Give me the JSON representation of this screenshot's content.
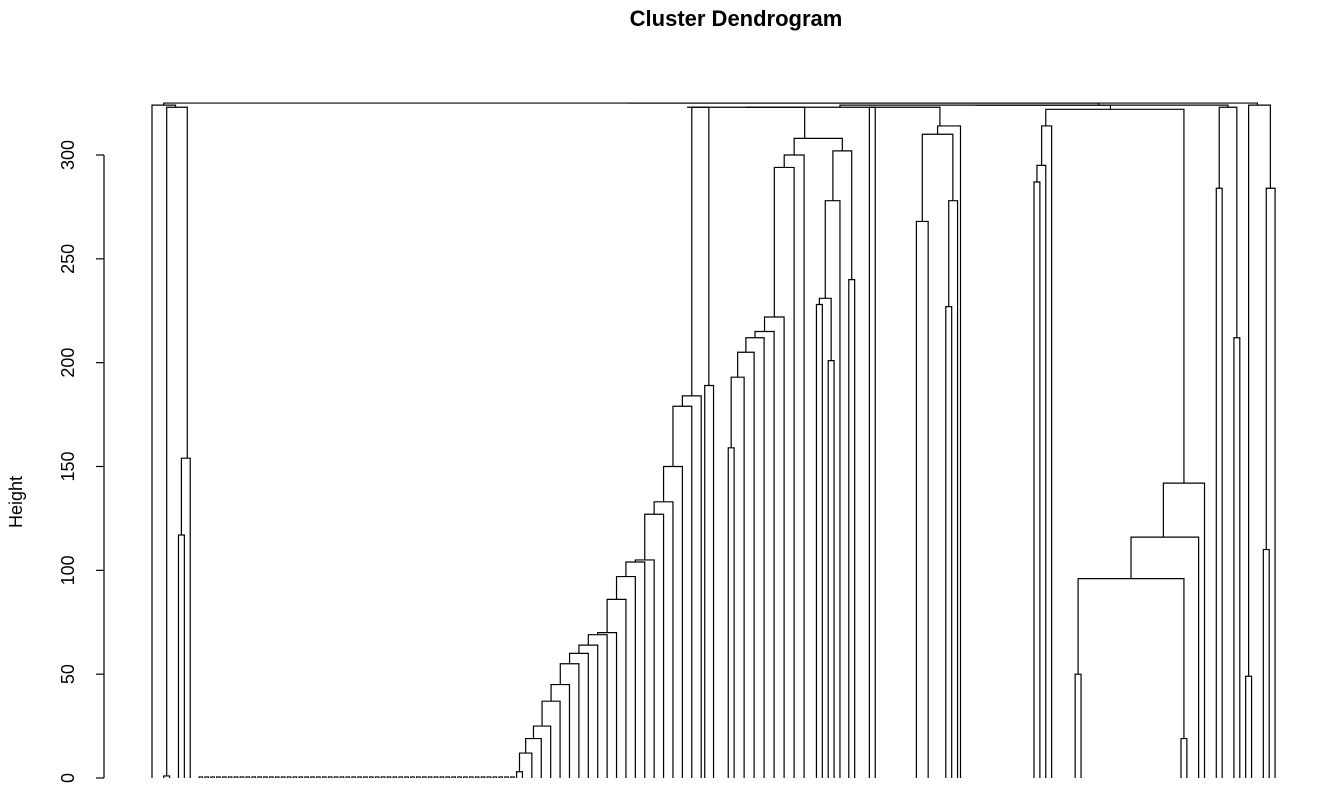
{
  "chart_data": {
    "type": "dendrogram",
    "title": "Cluster Dendrogram",
    "ylabel": "Height",
    "xlabel": "",
    "yticks": [
      0,
      50,
      100,
      150,
      200,
      250,
      300
    ],
    "ylim": [
      0,
      323
    ],
    "n_leaves": 192,
    "merges": [
      {
        "id": "root",
        "left": "g1",
        "right": "r_main",
        "height": 324
      },
      {
        "id": "g1",
        "left": "g1a",
        "right": "g1b",
        "height": 324
      },
      {
        "id": "g1a",
        "left": "pair_a",
        "right": "g1a_r",
        "height": 324
      },
      {
        "id": "g1a_r",
        "left": "g1a_s1",
        "right": "g1a_s2",
        "height": 154
      },
      {
        "id": "g1a_s2",
        "left": "g1a_s3",
        "right": "leaf",
        "height": 117
      },
      {
        "id": "chain",
        "height_steps": [
          3,
          12,
          19,
          25,
          37,
          45,
          55,
          60,
          64,
          69,
          70,
          86,
          97,
          104,
          105,
          127,
          133,
          150,
          179,
          184
        ]
      },
      {
        "id": "mid_a",
        "height_steps": [
          159,
          193,
          205,
          212,
          215,
          222,
          294,
          300,
          308
        ]
      },
      {
        "id": "mid_b",
        "height_steps": [
          201,
          228,
          231,
          278,
          240,
          302,
          308
        ]
      },
      {
        "id": "mid_c",
        "height_steps": [
          189,
          323
        ]
      },
      {
        "id": "g3",
        "height_steps": [
          268,
          227,
          278,
          310,
          314,
          323
        ]
      },
      {
        "id": "g4",
        "height_steps": [
          287,
          295,
          314,
          322
        ]
      },
      {
        "id": "g5",
        "height_steps": [
          50,
          19,
          96,
          116,
          142,
          322
        ]
      },
      {
        "id": "g6",
        "height_steps": [
          284,
          212,
          323
        ]
      },
      {
        "id": "g7",
        "height_steps": [
          49,
          110,
          284,
          324
        ]
      }
    ]
  }
}
